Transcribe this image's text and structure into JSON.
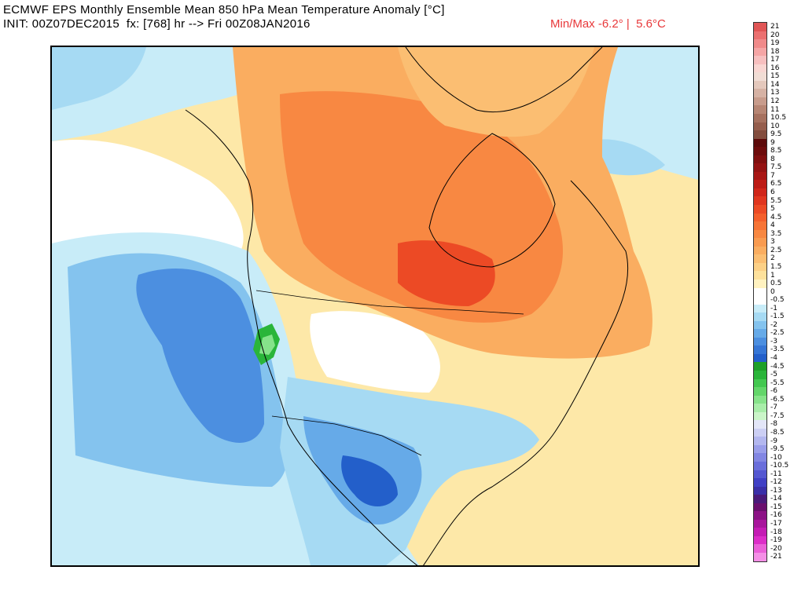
{
  "header": {
    "title_line1": "ECMWF EPS Monthly Ensemble Mean 850 hPa Mean Temperature Anomaly [°C]",
    "title_line2": "INIT: 00Z07DEC2015  fx: [768] hr --> Fri 00Z08JAN2016",
    "minmax": "Min/Max -6.2° |  5.6°C"
  },
  "legend": {
    "entries": [
      {
        "label": "21",
        "color": "#e05555"
      },
      {
        "label": "20",
        "color": "#eb7070"
      },
      {
        "label": "19",
        "color": "#f08a8a"
      },
      {
        "label": "18",
        "color": "#f5a5a5"
      },
      {
        "label": "17",
        "color": "#f7bfbf"
      },
      {
        "label": "16",
        "color": "#f9d6d2"
      },
      {
        "label": "15",
        "color": "#f1ddd5"
      },
      {
        "label": "14",
        "color": "#e4c8bc"
      },
      {
        "label": "13",
        "color": "#d6b2a4"
      },
      {
        "label": "12",
        "color": "#c89c8c"
      },
      {
        "label": "11",
        "color": "#b78674"
      },
      {
        "label": "10.5",
        "color": "#a6715f"
      },
      {
        "label": "10",
        "color": "#955e4d"
      },
      {
        "label": "9.5",
        "color": "#834d3e"
      },
      {
        "label": "9",
        "color": "#5c0a0a"
      },
      {
        "label": "8.5",
        "color": "#6d0c0c"
      },
      {
        "label": "8",
        "color": "#800f0f"
      },
      {
        "label": "7.5",
        "color": "#941212"
      },
      {
        "label": "7",
        "color": "#a81614"
      },
      {
        "label": "6.5",
        "color": "#bd1c16"
      },
      {
        "label": "6",
        "color": "#d0261a"
      },
      {
        "label": "5.5",
        "color": "#e0361f"
      },
      {
        "label": "5",
        "color": "#ec4a25"
      },
      {
        "label": "4.5",
        "color": "#f45f2c"
      },
      {
        "label": "4",
        "color": "#f77436"
      },
      {
        "label": "3.5",
        "color": "#f88842"
      },
      {
        "label": "3",
        "color": "#f99b50"
      },
      {
        "label": "2.5",
        "color": "#faad60"
      },
      {
        "label": "2",
        "color": "#fbbe72"
      },
      {
        "label": "1.5",
        "color": "#fcd086"
      },
      {
        "label": "1",
        "color": "#fde19c"
      },
      {
        "label": "0.5",
        "color": "#fff2c0"
      },
      {
        "label": "0",
        "color": "#ffffff"
      },
      {
        "label": "-0.5",
        "color": "#ffffff"
      },
      {
        "label": "-1",
        "color": "#c8ecf8"
      },
      {
        "label": "-1.5",
        "color": "#a6daf3"
      },
      {
        "label": "-2",
        "color": "#84c3ee"
      },
      {
        "label": "-2.5",
        "color": "#66aae8"
      },
      {
        "label": "-3",
        "color": "#4c8fe0"
      },
      {
        "label": "-3.5",
        "color": "#3676d6"
      },
      {
        "label": "-4",
        "color": "#235fca"
      },
      {
        "label": "-4.5",
        "color": "#1ea028"
      },
      {
        "label": "-5",
        "color": "#2ab53a"
      },
      {
        "label": "-5.5",
        "color": "#43c850"
      },
      {
        "label": "-6",
        "color": "#63d66a"
      },
      {
        "label": "-6.5",
        "color": "#86e38a"
      },
      {
        "label": "-7",
        "color": "#a8eda9"
      },
      {
        "label": "-7.5",
        "color": "#caf5c8"
      },
      {
        "label": "-8",
        "color": "#e3e6f8"
      },
      {
        "label": "-8.5",
        "color": "#cccff4"
      },
      {
        "label": "-9",
        "color": "#b3b7ef"
      },
      {
        "label": "-9.5",
        "color": "#9a9eea"
      },
      {
        "label": "-10",
        "color": "#8286e3"
      },
      {
        "label": "-10.5",
        "color": "#6a6edb"
      },
      {
        "label": "-11",
        "color": "#5457d1"
      },
      {
        "label": "-12",
        "color": "#4040c5"
      },
      {
        "label": "-13",
        "color": "#3a2fa8"
      },
      {
        "label": "-14",
        "color": "#4a1a7a"
      },
      {
        "label": "-15",
        "color": "#6a0f6e"
      },
      {
        "label": "-16",
        "color": "#8c1286"
      },
      {
        "label": "-17",
        "color": "#a8169c"
      },
      {
        "label": "-18",
        "color": "#c41cb4"
      },
      {
        "label": "-19",
        "color": "#dc2dc8"
      },
      {
        "label": "-20",
        "color": "#ea5fd8"
      },
      {
        "label": "-21",
        "color": "#f48fe6"
      }
    ]
  }
}
